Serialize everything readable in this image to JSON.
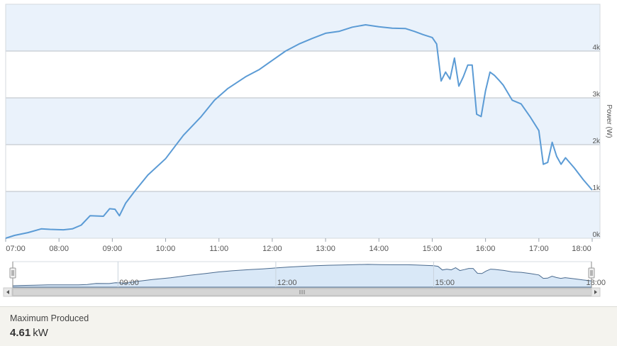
{
  "chart_data": {
    "type": "area",
    "ylabel": "Power (W)",
    "xlim": [
      "07:00",
      "18:00"
    ],
    "ylim": [
      0,
      5000
    ],
    "grid": true,
    "x_ticks": [
      "07:00",
      "08:00",
      "09:00",
      "10:00",
      "11:00",
      "12:00",
      "13:00",
      "14:00",
      "15:00",
      "16:00",
      "17:00",
      "18:00"
    ],
    "y_ticks": [
      {
        "value": 0,
        "label": "0k"
      },
      {
        "value": 1000,
        "label": "1k"
      },
      {
        "value": 2000,
        "label": "2k"
      },
      {
        "value": 3000,
        "label": "3k"
      },
      {
        "value": 4000,
        "label": "4k"
      }
    ],
    "series": [
      {
        "color": "#5b9bd5",
        "x": [
          "06:55",
          "07:10",
          "07:25",
          "07:40",
          "07:50",
          "08:05",
          "08:15",
          "08:25",
          "08:35",
          "08:50",
          "08:57",
          "09:03",
          "09:08",
          "09:15",
          "09:25",
          "09:40",
          "10:00",
          "10:20",
          "10:40",
          "10:55",
          "11:10",
          "11:30",
          "11:45",
          "12:00",
          "12:15",
          "12:30",
          "12:45",
          "13:00",
          "13:15",
          "13:30",
          "13:45",
          "14:00",
          "14:15",
          "14:30",
          "14:40",
          "14:50",
          "15:00",
          "15:05",
          "15:10",
          "15:15",
          "15:20",
          "15:25",
          "15:30",
          "15:35",
          "15:40",
          "15:45",
          "15:50",
          "15:55",
          "16:00",
          "16:05",
          "16:10",
          "16:15",
          "16:20",
          "16:30",
          "16:40",
          "16:50",
          "17:00",
          "17:05",
          "17:10",
          "17:15",
          "17:20",
          "17:25",
          "17:30",
          "17:40",
          "17:50",
          "18:00"
        ],
        "values": [
          0,
          60,
          120,
          200,
          190,
          180,
          200,
          280,
          480,
          470,
          630,
          620,
          480,
          750,
          1000,
          1350,
          1700,
          2200,
          2600,
          2950,
          3200,
          3450,
          3600,
          3800,
          4000,
          4150,
          4270,
          4380,
          4420,
          4510,
          4560,
          4520,
          4490,
          4480,
          4420,
          4350,
          4290,
          4150,
          3360,
          3550,
          3400,
          3850,
          3250,
          3450,
          3700,
          3700,
          2650,
          2600,
          3150,
          3550,
          3480,
          3380,
          3270,
          2950,
          2870,
          2600,
          2300,
          1580,
          1620,
          2050,
          1750,
          1580,
          1720,
          1500,
          1250,
          1030
        ]
      }
    ],
    "navigator": {
      "x_ticks": [
        "09:00",
        "12:00",
        "15:00",
        "18:00"
      ]
    }
  },
  "summary": {
    "label": "Maximum Produced",
    "value": "4.61",
    "unit": "kW"
  }
}
